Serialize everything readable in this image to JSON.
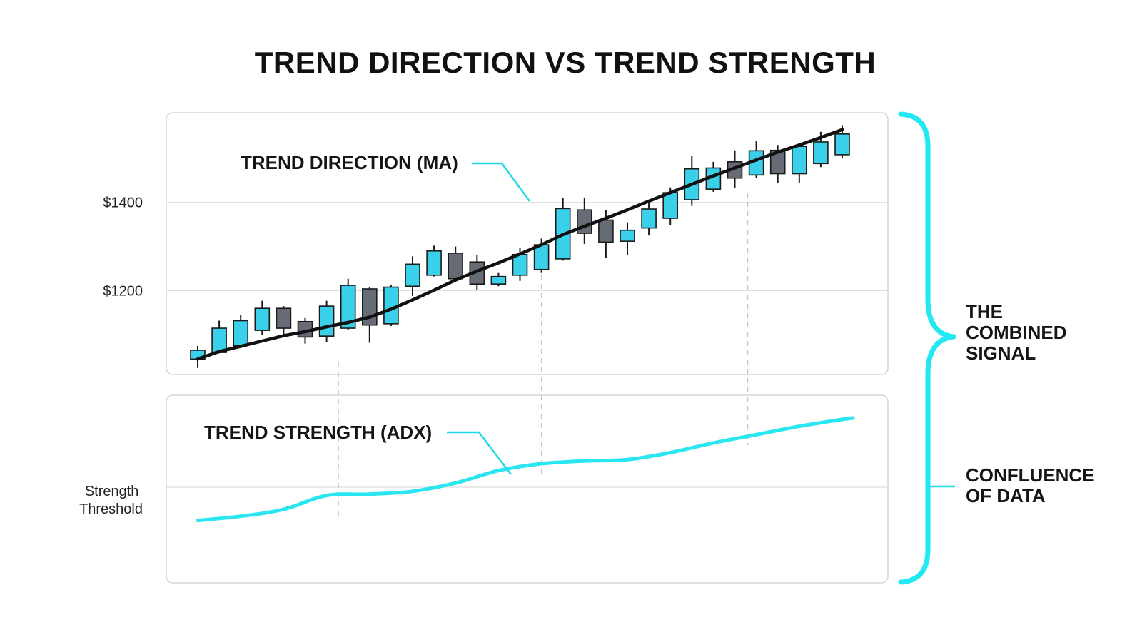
{
  "colors": {
    "bull": "#3ad0ea",
    "bear": "#676b75",
    "ma": "#111111",
    "adx": "#2ae6f0",
    "brace": "#22e8f2",
    "callout_line": "#22d8ea"
  },
  "chart_data": [
    {
      "type": "candlestick",
      "title": "TREND DIRECTION VS TREND STRENGTH",
      "ylim": [
        1010,
        1600
      ],
      "yticks": [
        {
          "value": 1400,
          "label": "$1400"
        },
        {
          "value": 1200,
          "label": "$1200"
        }
      ],
      "grid": true,
      "annotation": "TREND DIRECTION (MA)",
      "candles": [
        {
          "o": 1045,
          "h": 1075,
          "l": 1025,
          "c": 1065
        },
        {
          "o": 1060,
          "h": 1132,
          "l": 1058,
          "c": 1115
        },
        {
          "o": 1075,
          "h": 1145,
          "l": 1070,
          "c": 1132
        },
        {
          "o": 1110,
          "h": 1177,
          "l": 1100,
          "c": 1160
        },
        {
          "o": 1160,
          "h": 1165,
          "l": 1095,
          "c": 1115
        },
        {
          "o": 1130,
          "h": 1138,
          "l": 1080,
          "c": 1095
        },
        {
          "o": 1097,
          "h": 1177,
          "l": 1083,
          "c": 1165
        },
        {
          "o": 1115,
          "h": 1227,
          "l": 1110,
          "c": 1212
        },
        {
          "o": 1204,
          "h": 1208,
          "l": 1082,
          "c": 1122
        },
        {
          "o": 1125,
          "h": 1212,
          "l": 1120,
          "c": 1208
        },
        {
          "o": 1210,
          "h": 1278,
          "l": 1188,
          "c": 1260
        },
        {
          "o": 1235,
          "h": 1302,
          "l": 1232,
          "c": 1290
        },
        {
          "o": 1285,
          "h": 1300,
          "l": 1220,
          "c": 1227
        },
        {
          "o": 1265,
          "h": 1280,
          "l": 1202,
          "c": 1215
        },
        {
          "o": 1215,
          "h": 1240,
          "l": 1210,
          "c": 1232
        },
        {
          "o": 1235,
          "h": 1296,
          "l": 1222,
          "c": 1282
        },
        {
          "o": 1248,
          "h": 1318,
          "l": 1240,
          "c": 1304
        },
        {
          "o": 1272,
          "h": 1410,
          "l": 1268,
          "c": 1386
        },
        {
          "o": 1383,
          "h": 1410,
          "l": 1306,
          "c": 1330
        },
        {
          "o": 1360,
          "h": 1382,
          "l": 1275,
          "c": 1310
        },
        {
          "o": 1312,
          "h": 1355,
          "l": 1280,
          "c": 1337
        },
        {
          "o": 1342,
          "h": 1400,
          "l": 1325,
          "c": 1385
        },
        {
          "o": 1364,
          "h": 1434,
          "l": 1348,
          "c": 1422
        },
        {
          "o": 1406,
          "h": 1505,
          "l": 1392,
          "c": 1476
        },
        {
          "o": 1430,
          "h": 1492,
          "l": 1424,
          "c": 1478
        },
        {
          "o": 1492,
          "h": 1518,
          "l": 1432,
          "c": 1455
        },
        {
          "o": 1462,
          "h": 1540,
          "l": 1455,
          "c": 1517
        },
        {
          "o": 1518,
          "h": 1530,
          "l": 1444,
          "c": 1465
        },
        {
          "o": 1465,
          "h": 1530,
          "l": 1445,
          "c": 1527
        },
        {
          "o": 1488,
          "h": 1560,
          "l": 1480,
          "c": 1537
        },
        {
          "o": 1508,
          "h": 1575,
          "l": 1500,
          "c": 1555
        }
      ],
      "ma": [
        1045,
        1062,
        1074,
        1086,
        1098,
        1107,
        1118,
        1128,
        1140,
        1158,
        1179,
        1201,
        1224,
        1244,
        1263,
        1283,
        1304,
        1327,
        1346,
        1364,
        1383,
        1403,
        1422,
        1441,
        1460,
        1478,
        1496,
        1514,
        1530,
        1547,
        1565
      ]
    },
    {
      "type": "line",
      "annotation": "TREND STRENGTH (ADX)",
      "ylim": [
        0,
        100
      ],
      "threshold": {
        "value": 50,
        "label": [
          "Strength",
          "Threshold"
        ]
      },
      "x": [
        0,
        2,
        4,
        6,
        8,
        10,
        12,
        14,
        16,
        18,
        20,
        22,
        24,
        26,
        28,
        30,
        30.5
      ],
      "adx": [
        26,
        29,
        34,
        44,
        45,
        47,
        53,
        62,
        67,
        69,
        70,
        75,
        82,
        88,
        94,
        99,
        100
      ]
    }
  ],
  "side_labels": {
    "combined": [
      "THE",
      "COMBINED",
      "SIGNAL"
    ],
    "confluence": [
      "CONFLUENCE",
      "OF DATA"
    ]
  }
}
